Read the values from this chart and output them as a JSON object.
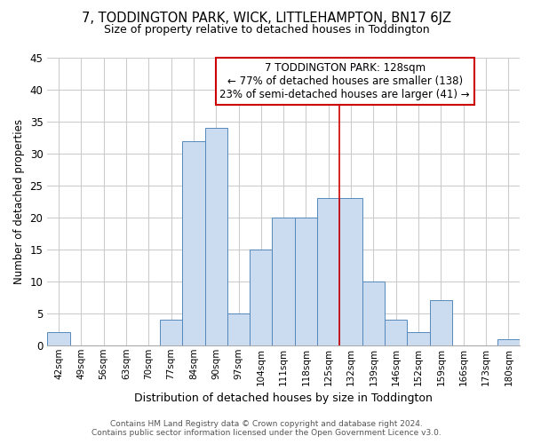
{
  "title": "7, TODDINGTON PARK, WICK, LITTLEHAMPTON, BN17 6JZ",
  "subtitle": "Size of property relative to detached houses in Toddington",
  "xlabel": "Distribution of detached houses by size in Toddington",
  "ylabel": "Number of detached properties",
  "bin_labels": [
    "42sqm",
    "49sqm",
    "56sqm",
    "63sqm",
    "70sqm",
    "77sqm",
    "84sqm",
    "90sqm",
    "97sqm",
    "104sqm",
    "111sqm",
    "118sqm",
    "125sqm",
    "132sqm",
    "139sqm",
    "146sqm",
    "152sqm",
    "159sqm",
    "166sqm",
    "173sqm",
    "180sqm"
  ],
  "bar_values": [
    2,
    0,
    0,
    0,
    0,
    4,
    32,
    34,
    5,
    15,
    20,
    20,
    23,
    23,
    10,
    4,
    2,
    7,
    0,
    0,
    1
  ],
  "bar_color": "#ccdcf0",
  "bar_edge_color": "#5588bb",
  "ylim": [
    0,
    45
  ],
  "yticks": [
    0,
    5,
    10,
    15,
    20,
    25,
    30,
    35,
    40,
    45
  ],
  "property_line_label": "7 TODDINGTON PARK: 128sqm",
  "annotation_line1": "← 77% of detached houses are smaller (138)",
  "annotation_line2": "23% of semi-detached houses are larger (41) →",
  "footer_line1": "Contains HM Land Registry data © Crown copyright and database right 2024.",
  "footer_line2": "Contains public sector information licensed under the Open Government Licence v3.0.",
  "bg_color": "#ffffff",
  "grid_color": "#cccccc"
}
